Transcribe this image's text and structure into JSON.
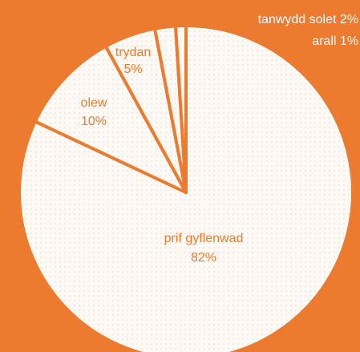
{
  "colors": {
    "background": "#ec7b2f",
    "slice_fill": "#fdfaf6",
    "slice_stroke": "#ec7b2f",
    "dot_pattern": "#e6d7c8",
    "inner_label": "#ec7b2f",
    "outer_label": "#ffffff"
  },
  "chart_data": {
    "type": "pie",
    "start_angle_deg": 0,
    "direction": "clockwise",
    "slices": [
      {
        "label": "prif gyflenwad",
        "value": 82,
        "value_text": "82%"
      },
      {
        "label": "olew",
        "value": 10,
        "value_text": "10%"
      },
      {
        "label": "trydan",
        "value": 5,
        "value_text": "5%"
      },
      {
        "label": "tanwydd solet",
        "value": 2,
        "value_text": "2%"
      },
      {
        "label": "arall",
        "value": 1,
        "value_text": "1%"
      }
    ],
    "legend": "none"
  }
}
